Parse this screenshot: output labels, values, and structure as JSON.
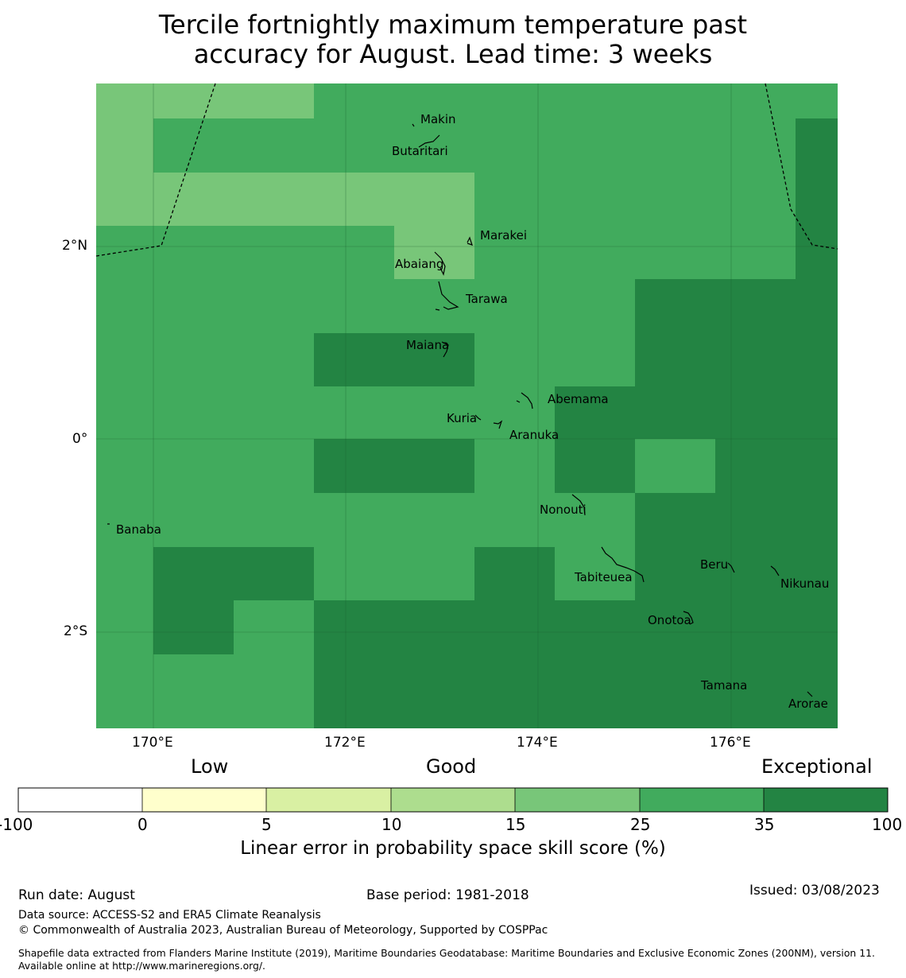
{
  "title_line1": "Tercile fortnightly maximum temperature past",
  "title_line2": "accuracy for August. Lead time: 3 weeks",
  "map": {
    "lon_range": [
      169.4,
      177.1
    ],
    "lat_range": [
      -3.0,
      3.6
    ],
    "lon_ticks": [
      {
        "label": "170°E",
        "value": 170
      },
      {
        "label": "172°E",
        "value": 172
      },
      {
        "label": "174°E",
        "value": 174
      },
      {
        "label": "176°E",
        "value": 176
      }
    ],
    "lat_ticks": [
      {
        "label": "2°N",
        "value": 2
      },
      {
        "label": "0°",
        "value": 0
      },
      {
        "label": "2°S",
        "value": -2
      }
    ],
    "places": [
      {
        "name": "Makin"
      },
      {
        "name": "Butaritari"
      },
      {
        "name": "Marakei"
      },
      {
        "name": "Abaiang"
      },
      {
        "name": "Tarawa"
      },
      {
        "name": "Maiana"
      },
      {
        "name": "Abemama"
      },
      {
        "name": "Kuria"
      },
      {
        "name": "Aranuka"
      },
      {
        "name": "Nonouti"
      },
      {
        "name": "Banaba"
      },
      {
        "name": "Beru"
      },
      {
        "name": "Tabiteuea"
      },
      {
        "name": "Nikunau"
      },
      {
        "name": "Onotoa"
      },
      {
        "name": "Tamana"
      },
      {
        "name": "Arorae"
      }
    ],
    "skill_bins": [
      "15-25",
      "25-35",
      "35-100"
    ]
  },
  "colorbar": {
    "categories": [
      "Low",
      "Good",
      "Exceptional"
    ],
    "ticks": [
      "-100",
      "0",
      "5",
      "10",
      "15",
      "25",
      "35",
      "100"
    ],
    "colors": [
      "#ffffff",
      "#ffffcc",
      "#d9f0a3",
      "#addd8e",
      "#78c679",
      "#41ab5d",
      "#238443"
    ],
    "label": "Linear error in probability space skill score (%)"
  },
  "footer": {
    "run_date": "Run date: August",
    "base_period": "Base period: 1981-2018",
    "issued": "Issued: 03/08/2023",
    "data_source": "Data source: ACCESS-S2 and ERA5 Climate Reanalysis",
    "copyright": "© Commonwealth of Australia 2023, Australian Bureau of Meteorology, Supported by COSPPac",
    "shapefile": "Shapefile data extracted from Flanders Marine Institute (2019), Maritime Boundaries Geodatabase: Maritime Boundaries and Exclusive Economic Zones (200NM), version 11. Available online at http://www.marineregions.org/."
  }
}
